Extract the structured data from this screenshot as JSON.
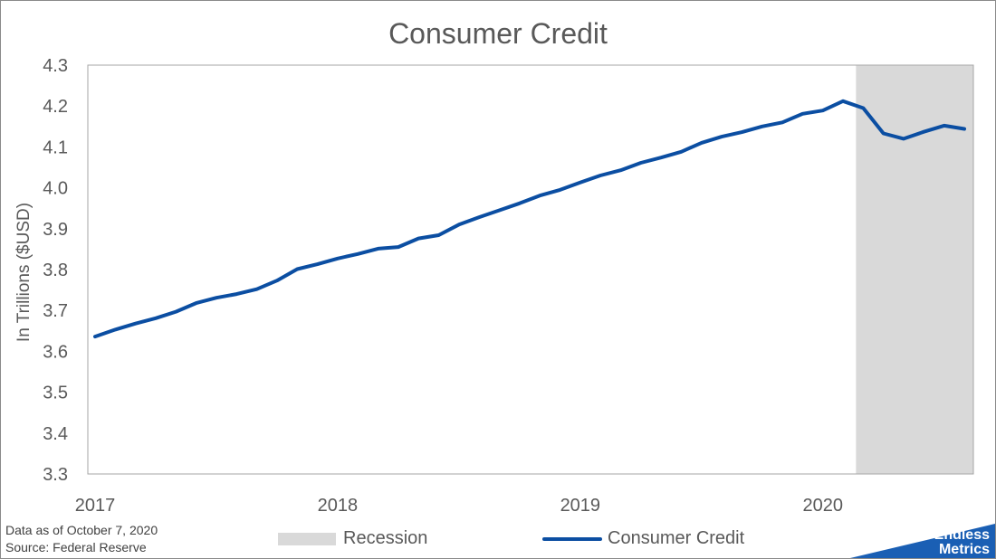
{
  "chart_data": {
    "type": "line",
    "title": "Consumer Credit",
    "ylabel": "In Trillions ($USD)",
    "xlabel": "",
    "ylim": [
      3.3,
      4.3
    ],
    "yticks": [
      "3.3",
      "3.4",
      "3.5",
      "3.6",
      "3.7",
      "3.8",
      "3.9",
      "4.0",
      "4.1",
      "4.2",
      "4.3"
    ],
    "xticks": [
      "2017",
      "2018",
      "2019",
      "2020"
    ],
    "x_start": "2017-01",
    "x_end": "2020-08",
    "recession": {
      "name": "Recession",
      "start": "2020-03",
      "end": "2020-08",
      "color": "#d9d9d9"
    },
    "series": [
      {
        "name": "Consumer Credit",
        "color": "#0b4ea2",
        "x": [
          "2017-01",
          "2017-02",
          "2017-03",
          "2017-04",
          "2017-05",
          "2017-06",
          "2017-07",
          "2017-08",
          "2017-09",
          "2017-10",
          "2017-11",
          "2017-12",
          "2018-01",
          "2018-02",
          "2018-03",
          "2018-04",
          "2018-05",
          "2018-06",
          "2018-07",
          "2018-08",
          "2018-09",
          "2018-10",
          "2018-11",
          "2018-12",
          "2019-01",
          "2019-02",
          "2019-03",
          "2019-04",
          "2019-05",
          "2019-06",
          "2019-07",
          "2019-08",
          "2019-09",
          "2019-10",
          "2019-11",
          "2019-12",
          "2020-01",
          "2020-02",
          "2020-03",
          "2020-04",
          "2020-05",
          "2020-06",
          "2020-07",
          "2020-08"
        ],
        "values": [
          3.636,
          3.653,
          3.668,
          3.681,
          3.697,
          3.718,
          3.731,
          3.74,
          3.752,
          3.773,
          3.801,
          3.813,
          3.827,
          3.838,
          3.851,
          3.855,
          3.876,
          3.884,
          3.91,
          3.928,
          3.945,
          3.962,
          3.981,
          3.995,
          4.013,
          4.03,
          4.043,
          4.061,
          4.074,
          4.088,
          4.11,
          4.125,
          4.136,
          4.15,
          4.16,
          4.181,
          4.189,
          4.212,
          4.195,
          4.133,
          4.12,
          4.137,
          4.152,
          4.144
        ]
      }
    ],
    "legend_position": "bottom",
    "grid": false
  },
  "legend": {
    "recession_label": "Recession",
    "series_label": "Consumer Credit"
  },
  "footnote": {
    "date_line": "Data as of October 7, 2020",
    "source_line": "Source: Federal Reserve"
  },
  "logo": {
    "line1": "Endless",
    "line2": "Metrics",
    "color": "#1a5fb4"
  }
}
